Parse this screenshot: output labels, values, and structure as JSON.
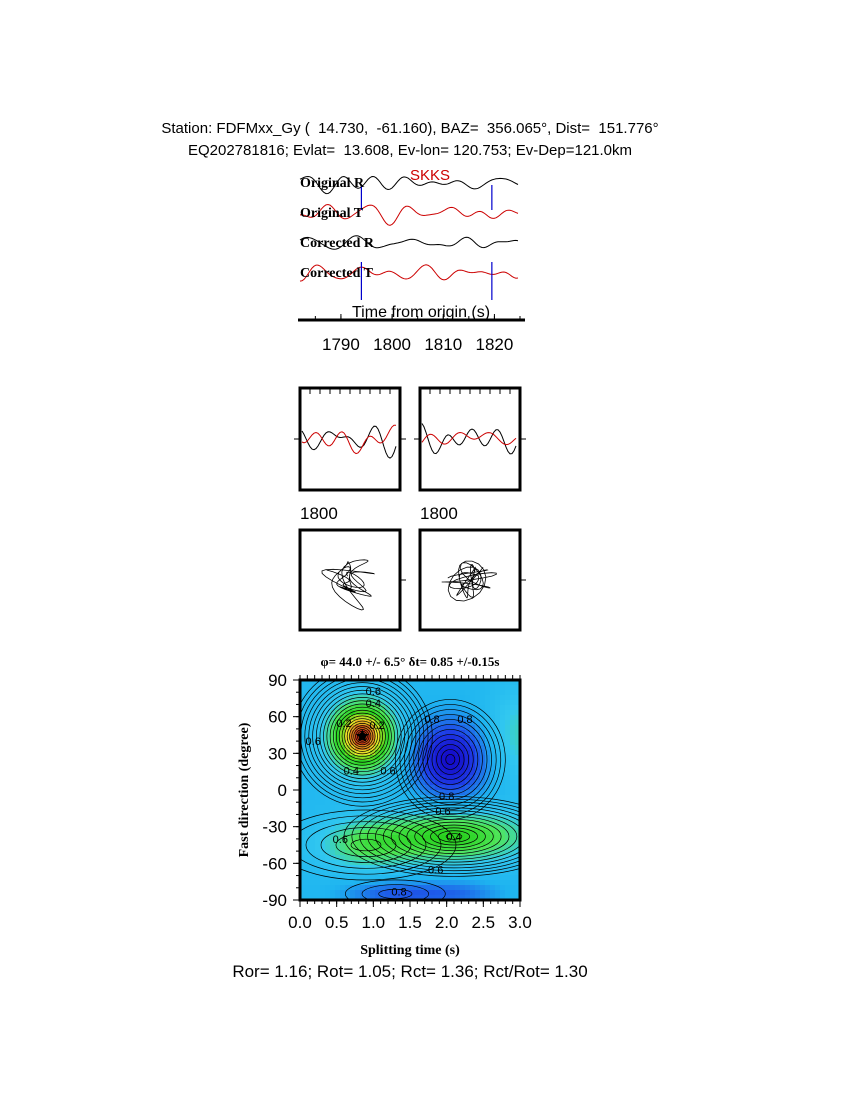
{
  "header": {
    "line1": "Station: FDFMxx_Gy (  14.730,  -61.160), BAZ=  356.065°, Dist=  151.776°",
    "line2": "EQ202781816; Evlat=  13.608, Ev-lon= 120.753; Ev-Dep=121.0km"
  },
  "chart_data": [
    {
      "type": "line",
      "phase_label": "SKKS",
      "traces": [
        {
          "name": "Original R",
          "color": "#000000"
        },
        {
          "name": "Original T",
          "color": "#cc0000"
        },
        {
          "name": "Corrected R",
          "color": "#000000"
        },
        {
          "name": "Corrected T",
          "color": "#cc0000"
        }
      ],
      "window_marks_s": [
        1794,
        1819.5
      ],
      "window_color": "#0000cc",
      "xlabel": "Time from origin (s)",
      "xlim": [
        1782,
        1825
      ],
      "xticks": [
        1790,
        1800,
        1810,
        1820
      ]
    },
    {
      "type": "line",
      "panels": [
        {
          "label": "",
          "colors": [
            "#000000",
            "#cc0000"
          ]
        },
        {
          "label": "",
          "colors": [
            "#000000",
            "#cc0000"
          ]
        }
      ],
      "tick_label": "1800"
    },
    {
      "type": "scatter",
      "panels": [
        {
          "label": "1800"
        },
        {
          "label": "1800"
        }
      ]
    },
    {
      "type": "heatmap",
      "title": "φ= 44.0 +/- 6.5° δt= 0.85 +/-0.15s",
      "xlabel": "Splitting time (s)",
      "ylabel": "Fast direction (degree)",
      "xlim": [
        0,
        3
      ],
      "ylim": [
        -90,
        90
      ],
      "xticks": [
        "0.0",
        "0.5",
        "1.0",
        "1.5",
        "2.0",
        "2.5",
        "3.0"
      ],
      "yticks": [
        "90",
        "60",
        "30",
        "0",
        "-30",
        "-60",
        "-90"
      ],
      "best_fit": {
        "dt": 0.85,
        "phi": 44.0
      },
      "contour_labels": [
        {
          "text": "0.6",
          "x": 1.0,
          "y": 81
        },
        {
          "text": "0.4",
          "x": 1.0,
          "y": 71
        },
        {
          "text": "0.2",
          "x": 0.6,
          "y": 55
        },
        {
          "text": "0.2",
          "x": 1.05,
          "y": 53
        },
        {
          "text": "0.6",
          "x": 0.18,
          "y": 40
        },
        {
          "text": "0.4",
          "x": 0.7,
          "y": 16
        },
        {
          "text": "0.6",
          "x": 1.2,
          "y": 16
        },
        {
          "text": "0.8",
          "x": 1.8,
          "y": 58
        },
        {
          "text": "0.8",
          "x": 2.25,
          "y": 58
        },
        {
          "text": "0.8",
          "x": 2.0,
          "y": -5
        },
        {
          "text": "0.6",
          "x": 1.95,
          "y": -17
        },
        {
          "text": "0.4",
          "x": 2.1,
          "y": -38
        },
        {
          "text": "0.6",
          "x": 0.55,
          "y": -40
        },
        {
          "text": "0.6",
          "x": 1.85,
          "y": -65
        },
        {
          "text": "0.8",
          "x": 1.35,
          "y": -83
        }
      ]
    }
  ],
  "footer": "Ror= 1.16; Rot= 1.05; Rct= 1.36; Rct/Rot= 1.30"
}
